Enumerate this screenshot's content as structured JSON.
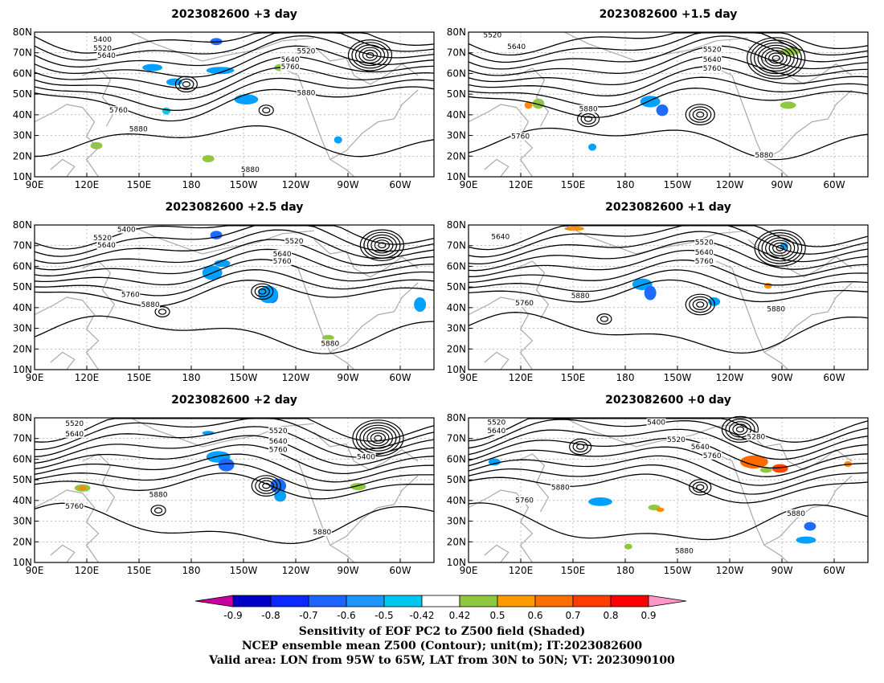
{
  "panels": [
    {
      "title": "2023082600  +3 day",
      "labels": [
        [
          "5400",
          0.17,
          0.05
        ],
        [
          "5520",
          0.17,
          0.11
        ],
        [
          "5640",
          0.18,
          0.16
        ],
        [
          "5520",
          0.68,
          0.13
        ],
        [
          "5640",
          0.64,
          0.19
        ],
        [
          "5760",
          0.64,
          0.24
        ],
        [
          "5880",
          0.68,
          0.42
        ],
        [
          "5760",
          0.21,
          0.54
        ],
        [
          "5880",
          0.26,
          0.67
        ],
        [
          "5880",
          0.54,
          0.95
        ]
      ],
      "shades": [
        [
          "#1e6cff",
          0.44,
          0.04,
          0.03,
          0.05
        ],
        [
          "#00a0ff",
          0.27,
          0.22,
          0.05,
          0.05
        ],
        [
          "#8fc83c",
          0.6,
          0.22,
          0.03,
          0.05
        ],
        [
          "#00a0ff",
          0.43,
          0.24,
          0.07,
          0.05
        ],
        [
          "#00a0ff",
          0.33,
          0.32,
          0.04,
          0.05
        ],
        [
          "#00a0ff",
          0.5,
          0.43,
          0.06,
          0.07
        ],
        [
          "#00c8f0",
          0.32,
          0.52,
          0.02,
          0.05
        ],
        [
          "#8fc83c",
          0.14,
          0.76,
          0.03,
          0.05
        ],
        [
          "#00a0ff",
          0.75,
          0.72,
          0.02,
          0.05
        ],
        [
          "#8fc83c",
          0.42,
          0.85,
          0.03,
          0.05
        ]
      ],
      "cyclones": [
        [
          0.38,
          0.36,
          3
        ],
        [
          0.84,
          0.16,
          6
        ],
        [
          0.58,
          0.54,
          2
        ]
      ]
    },
    {
      "title": "2023082600  +1.5 day",
      "labels": [
        [
          "5520",
          0.06,
          0.02
        ],
        [
          "5640",
          0.12,
          0.1
        ],
        [
          "5520",
          0.61,
          0.12
        ],
        [
          "5640",
          0.61,
          0.19
        ],
        [
          "5760",
          0.61,
          0.25
        ],
        [
          "5880",
          0.3,
          0.53
        ],
        [
          "5760",
          0.13,
          0.72
        ],
        [
          "5880",
          0.74,
          0.85
        ]
      ],
      "shades": [
        [
          "#8fc83c",
          0.16,
          0.46,
          0.03,
          0.07
        ],
        [
          "#ff8c00",
          0.14,
          0.48,
          0.02,
          0.05
        ],
        [
          "#00a0ff",
          0.43,
          0.44,
          0.05,
          0.08
        ],
        [
          "#1e6cff",
          0.47,
          0.5,
          0.03,
          0.08
        ],
        [
          "#8fc83c",
          0.78,
          0.11,
          0.05,
          0.05
        ],
        [
          "#8fc83c",
          0.78,
          0.48,
          0.04,
          0.05
        ],
        [
          "#00a0ff",
          0.3,
          0.77,
          0.02,
          0.05
        ]
      ],
      "cyclones": [
        [
          0.58,
          0.57,
          4
        ],
        [
          0.77,
          0.18,
          8
        ],
        [
          0.3,
          0.6,
          3
        ]
      ]
    },
    {
      "title": "2023082600  +2.5 day",
      "labels": [
        [
          "5400",
          0.23,
          0.03
        ],
        [
          "5520",
          0.17,
          0.09
        ],
        [
          "5640",
          0.18,
          0.14
        ],
        [
          "5520",
          0.65,
          0.11
        ],
        [
          "5640",
          0.62,
          0.2
        ],
        [
          "5760",
          0.62,
          0.25
        ],
        [
          "5760",
          0.24,
          0.48
        ],
        [
          "5880",
          0.29,
          0.55
        ],
        [
          "5880",
          0.74,
          0.82
        ]
      ],
      "shades": [
        [
          "#1e6cff",
          0.44,
          0.04,
          0.03,
          0.06
        ],
        [
          "#00a0ff",
          0.45,
          0.24,
          0.04,
          0.05
        ],
        [
          "#00a0ff",
          0.42,
          0.28,
          0.05,
          0.1
        ],
        [
          "#1e6cff",
          0.58,
          0.44,
          0.03,
          0.1
        ],
        [
          "#00a0ff",
          0.56,
          0.42,
          0.05,
          0.12
        ],
        [
          "#8fc83c",
          0.72,
          0.76,
          0.03,
          0.04
        ],
        [
          "#00a0ff",
          0.95,
          0.5,
          0.03,
          0.1
        ]
      ],
      "cyclones": [
        [
          0.57,
          0.46,
          3
        ],
        [
          0.87,
          0.14,
          6
        ],
        [
          0.32,
          0.6,
          2
        ]
      ]
    },
    {
      "title": "2023082600  +1 day",
      "labels": [
        [
          "5640",
          0.08,
          0.08
        ],
        [
          "5520",
          0.59,
          0.12
        ],
        [
          "5640",
          0.59,
          0.19
        ],
        [
          "5760",
          0.59,
          0.25
        ],
        [
          "5760",
          0.14,
          0.54
        ],
        [
          "5880",
          0.28,
          0.49
        ],
        [
          "5880",
          0.77,
          0.58
        ]
      ],
      "shades": [
        [
          "#ff8c00",
          0.24,
          0.01,
          0.05,
          0.03
        ],
        [
          "#00a0ff",
          0.41,
          0.37,
          0.05,
          0.08
        ],
        [
          "#1e6cff",
          0.44,
          0.42,
          0.03,
          0.1
        ],
        [
          "#00a0ff",
          0.6,
          0.5,
          0.03,
          0.06
        ],
        [
          "#00a0ff",
          0.78,
          0.12,
          0.02,
          0.05
        ],
        [
          "#ff8c00",
          0.74,
          0.4,
          0.02,
          0.04
        ]
      ],
      "cyclones": [
        [
          0.58,
          0.55,
          4
        ],
        [
          0.78,
          0.16,
          7
        ],
        [
          0.34,
          0.65,
          2
        ]
      ]
    },
    {
      "title": "2023082600  +2 day",
      "labels": [
        [
          "5520",
          0.1,
          0.04
        ],
        [
          "5640",
          0.1,
          0.11
        ],
        [
          "5520",
          0.61,
          0.09
        ],
        [
          "5640",
          0.61,
          0.16
        ],
        [
          "5760",
          0.61,
          0.22
        ],
        [
          "5400",
          0.83,
          0.27
        ],
        [
          "5880",
          0.31,
          0.53
        ],
        [
          "5760",
          0.1,
          0.61
        ],
        [
          "5880",
          0.72,
          0.79
        ]
      ],
      "shades": [
        [
          "#00a0ff",
          0.43,
          0.23,
          0.06,
          0.08
        ],
        [
          "#1e6cff",
          0.46,
          0.28,
          0.04,
          0.09
        ],
        [
          "#1e6cff",
          0.59,
          0.42,
          0.04,
          0.1
        ],
        [
          "#00a0ff",
          0.6,
          0.5,
          0.03,
          0.08
        ],
        [
          "#8fc83c",
          0.1,
          0.46,
          0.04,
          0.05
        ],
        [
          "#ff8c00",
          0.11,
          0.47,
          0.02,
          0.03
        ],
        [
          "#8fc83c",
          0.79,
          0.45,
          0.04,
          0.05
        ],
        [
          "#00a0ff",
          0.42,
          0.09,
          0.03,
          0.03
        ]
      ],
      "cyclones": [
        [
          0.58,
          0.47,
          4
        ],
        [
          0.86,
          0.14,
          7
        ],
        [
          0.31,
          0.64,
          2
        ]
      ]
    },
    {
      "title": "2023082600  +0 day",
      "labels": [
        [
          "5520",
          0.07,
          0.03
        ],
        [
          "5640",
          0.07,
          0.09
        ],
        [
          "5400",
          0.47,
          0.03
        ],
        [
          "5520",
          0.52,
          0.15
        ],
        [
          "5640",
          0.58,
          0.2
        ],
        [
          "5760",
          0.61,
          0.26
        ],
        [
          "5280",
          0.72,
          0.13
        ],
        [
          "5880",
          0.23,
          0.48
        ],
        [
          "5760",
          0.14,
          0.57
        ],
        [
          "5880",
          0.82,
          0.66
        ],
        [
          "5880",
          0.54,
          0.92
        ]
      ],
      "shades": [
        [
          "#ff6a00",
          0.68,
          0.26,
          0.07,
          0.09
        ],
        [
          "#ff4500",
          0.76,
          0.32,
          0.04,
          0.06
        ],
        [
          "#8fc83c",
          0.73,
          0.34,
          0.03,
          0.04
        ],
        [
          "#00a0ff",
          0.05,
          0.28,
          0.03,
          0.05
        ],
        [
          "#00a0ff",
          0.3,
          0.55,
          0.06,
          0.06
        ],
        [
          "#8fc83c",
          0.45,
          0.6,
          0.03,
          0.04
        ],
        [
          "#ff8c00",
          0.47,
          0.62,
          0.02,
          0.03
        ],
        [
          "#1e6cff",
          0.84,
          0.72,
          0.03,
          0.06
        ],
        [
          "#00a0ff",
          0.82,
          0.82,
          0.05,
          0.05
        ],
        [
          "#8fc83c",
          0.39,
          0.87,
          0.02,
          0.04
        ],
        [
          "#ff8c00",
          0.94,
          0.3,
          0.02,
          0.04
        ]
      ],
      "cyclones": [
        [
          0.58,
          0.48,
          3
        ],
        [
          0.68,
          0.08,
          5
        ],
        [
          0.28,
          0.2,
          3
        ]
      ]
    }
  ],
  "yticks": [
    "80N",
    "70N",
    "60N",
    "50N",
    "40N",
    "30N",
    "20N",
    "10N"
  ],
  "xticks": [
    "90E",
    "120E",
    "150E",
    "180",
    "150W",
    "120W",
    "90W",
    "60W"
  ],
  "colorbar": {
    "colors": [
      "#c800a0",
      "#0000c8",
      "#0a28ff",
      "#1e64ff",
      "#1e96ff",
      "#00c8f5",
      "#ffffff",
      "#8fc83c",
      "#ff9b00",
      "#ff6e00",
      "#ff3c00",
      "#ff0000",
      "#ff96c8"
    ],
    "ticks": [
      "-0.9",
      "-0.8",
      "-0.7",
      "-0.6",
      "-0.5",
      "-0.42",
      "0.42",
      "0.5",
      "0.6",
      "0.7",
      "0.8",
      "0.9"
    ]
  },
  "caption": [
    "Sensitivity of EOF PC2 to Z500 field (Shaded)",
    "NCEP ensemble mean Z500 (Contour); unit(m); IT:2023082600",
    "Valid area: LON from 95W to 65W, LAT from 30N to 50N; VT: 2023090100"
  ]
}
